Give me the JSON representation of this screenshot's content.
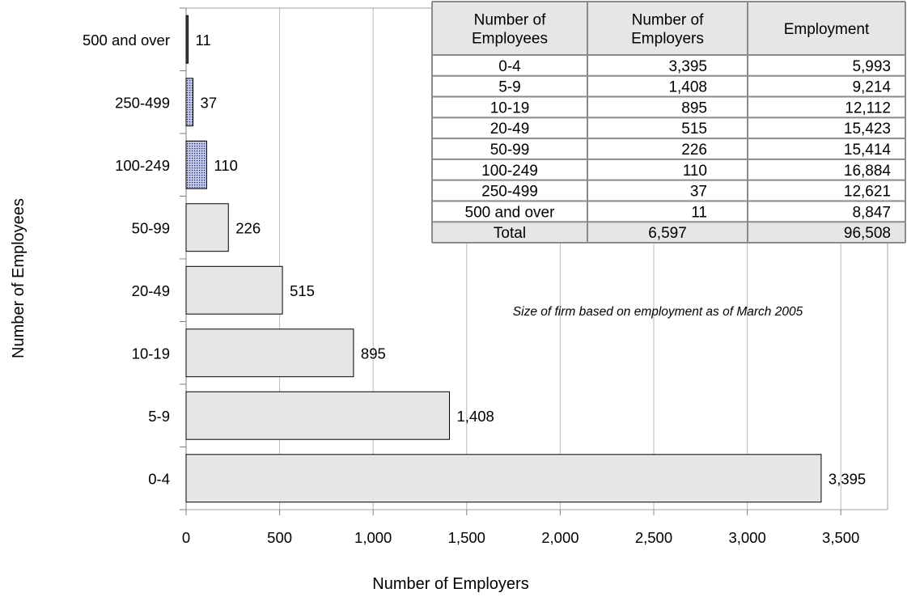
{
  "chart_data": {
    "type": "bar",
    "orientation": "horizontal",
    "categories": [
      "0-4",
      "5-9",
      "10-19",
      "20-49",
      "50-99",
      "100-249",
      "250-499",
      "500 and over"
    ],
    "values": [
      3395,
      1408,
      895,
      515,
      226,
      110,
      37,
      11
    ],
    "value_labels": [
      "3,395",
      "1,408",
      "895",
      "515",
      "226",
      "110",
      "37",
      "11"
    ],
    "bar_styles": [
      "plain",
      "plain",
      "plain",
      "plain",
      "plain",
      "dotted",
      "dotted",
      "dark"
    ],
    "xlabel": "Number of Employers",
    "ylabel": "Number of Employees",
    "xlim": [
      0,
      3750
    ],
    "x_ticks": [
      0,
      500,
      1000,
      1500,
      2000,
      2500,
      3000,
      3500
    ],
    "x_tick_labels": [
      "0",
      "500",
      "1,000",
      "1,500",
      "2,000",
      "2,500",
      "3,000",
      "3,500"
    ],
    "grid": "vertical",
    "colors": {
      "bar_fill": "#e6e6e6",
      "dotted_fill": "#c6cce6",
      "dot_color": "#1c2a80",
      "dark_fill": "#4a4a4a",
      "table_header_fill": "#e6e6e6"
    }
  },
  "table": {
    "headers": [
      [
        "Number of",
        "Employees"
      ],
      [
        "Number of",
        "Employers"
      ],
      [
        "Employment"
      ]
    ],
    "rows": [
      [
        "0-4",
        "3,395",
        "5,993"
      ],
      [
        "5-9",
        "1,408",
        "9,214"
      ],
      [
        "10-19",
        "895",
        "12,112"
      ],
      [
        "20-49",
        "515",
        "15,423"
      ],
      [
        "50-99",
        "226",
        "15,414"
      ],
      [
        "100-249",
        "110",
        "16,884"
      ],
      [
        "250-499",
        "37",
        "12,621"
      ],
      [
        "500 and over",
        "11",
        "8,847"
      ]
    ],
    "total": [
      "Total",
      "6,597",
      "96,508"
    ],
    "note": "Size of firm based on employment as of March 2005"
  }
}
